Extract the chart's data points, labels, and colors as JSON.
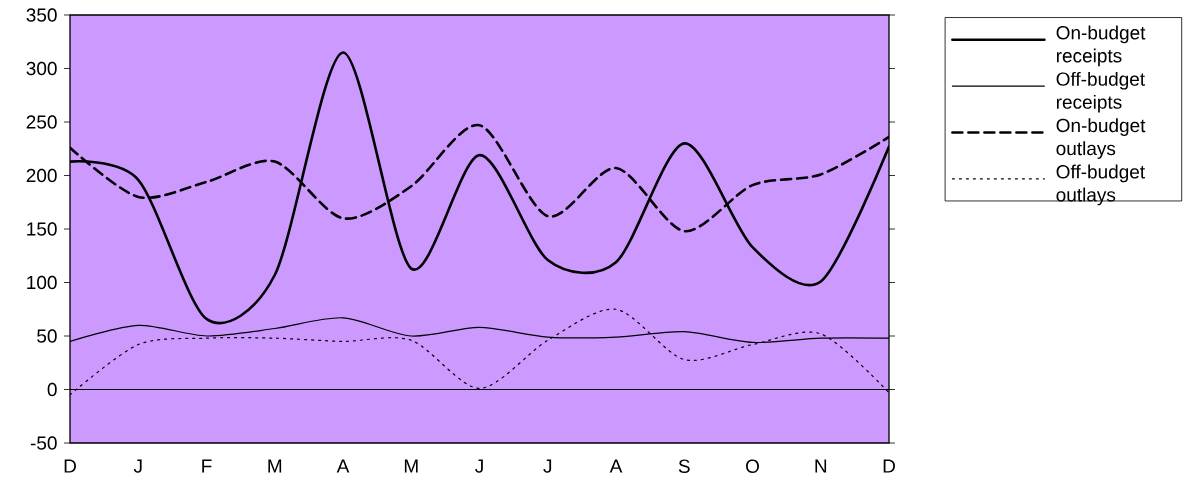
{
  "chart_data": {
    "type": "line",
    "categories": [
      "D",
      "J",
      "F",
      "M",
      "A",
      "M",
      "J",
      "J",
      "A",
      "S",
      "O",
      "N",
      "D"
    ],
    "ylim": [
      -50,
      350
    ],
    "yticks": [
      -50,
      0,
      50,
      100,
      150,
      200,
      250,
      300,
      350
    ],
    "grid": false,
    "legend": "right",
    "marker": "none",
    "ref_lines": [
      {
        "axis": "y",
        "value": 0,
        "color": "#000000",
        "line_style": "solid"
      }
    ],
    "series": [
      {
        "name": "On-budget receipts",
        "color": "#000000",
        "line_style": "solid",
        "values": [
          213,
          196,
          66,
          107,
          315,
          113,
          219,
          121,
          119,
          230,
          133,
          101,
          227
        ]
      },
      {
        "name": "Off-budget receipts",
        "color": "#000000",
        "line_style": "solid",
        "values": [
          45,
          60,
          50,
          57,
          67,
          50,
          58,
          49,
          49,
          54,
          44,
          48,
          48
        ]
      },
      {
        "name": "On-budget outlays",
        "color": "#000000",
        "line_style": "dashed",
        "values": [
          226,
          180,
          194,
          213,
          160,
          190,
          247,
          162,
          207,
          148,
          191,
          201,
          236
        ]
      },
      {
        "name": "Off-budget outlays",
        "color": "#000000",
        "line_style": "dotted",
        "values": [
          -5,
          42,
          48,
          48,
          45,
          46,
          1,
          46,
          75,
          28,
          42,
          52,
          -3
        ]
      }
    ]
  }
}
